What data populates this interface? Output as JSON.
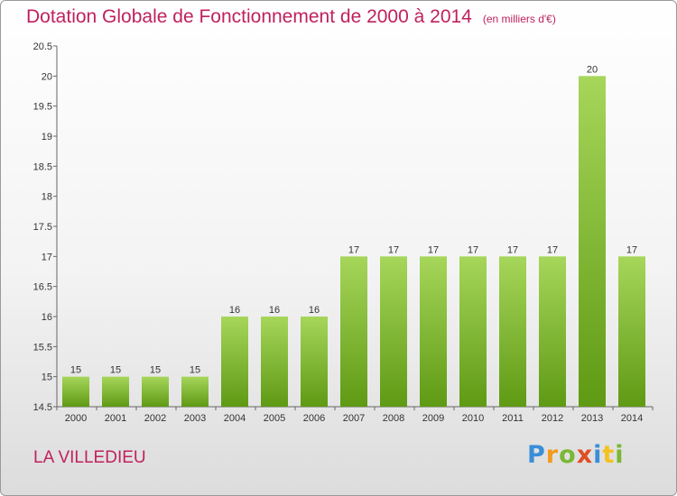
{
  "title": "Dotation Globale de Fonctionnement de 2000 à 2014",
  "subtitle": "(en milliers d'€)",
  "commune": "LA VILLEDIEU",
  "logo_letters": [
    "P",
    "r",
    "o",
    "x",
    "i",
    "t",
    "i"
  ],
  "colors": {
    "title": "#c0215e",
    "bar_light": "#a6d65a",
    "bar_dark": "#5f9a14",
    "axis": "#666666"
  },
  "chart_data": {
    "type": "bar",
    "title": "Dotation Globale de Fonctionnement de 2000 à 2014",
    "subtitle": "(en milliers d'€)",
    "xlabel": "",
    "ylabel": "",
    "categories": [
      "2000",
      "2001",
      "2002",
      "2003",
      "2004",
      "2005",
      "2006",
      "2007",
      "2008",
      "2009",
      "2010",
      "2011",
      "2012",
      "2013",
      "2014"
    ],
    "values": [
      15,
      15,
      15,
      15,
      16,
      16,
      16,
      17,
      17,
      17,
      17,
      17,
      17,
      20,
      17
    ],
    "ylim": [
      14.5,
      20.5
    ],
    "yticks": [
      14.5,
      15,
      15.5,
      16,
      16.5,
      17,
      17.5,
      18,
      18.5,
      19,
      19.5,
      20,
      20.5
    ],
    "grid": false,
    "legend": "none"
  }
}
